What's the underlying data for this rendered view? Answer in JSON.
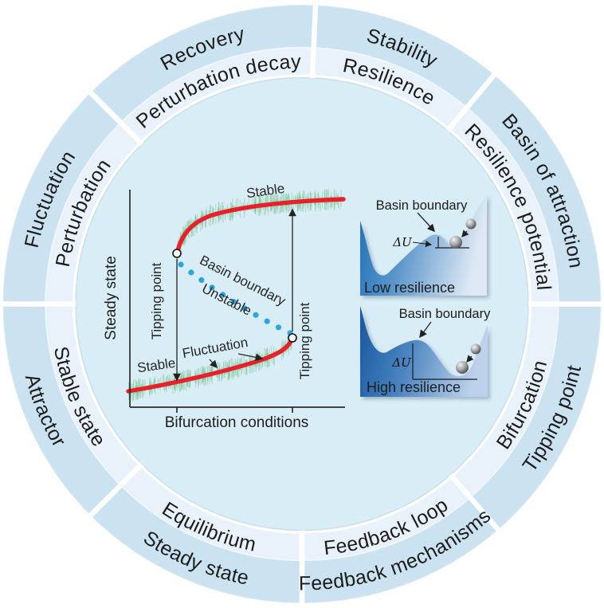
{
  "figure": {
    "type": "circular-glossary-diagram",
    "background": "#ffffff"
  },
  "ring": {
    "colors": {
      "outer_band": "#cbe2f1",
      "inner_band": "#e9f2fa",
      "center_disc": "#d9edf6",
      "divider": "#ffffff",
      "text": "#1c1c1c"
    },
    "boundaries_deg": [
      2.6,
      40,
      90,
      139,
      180,
      225,
      270,
      315
    ],
    "segments": [
      {
        "outer": "Stability",
        "inner": "Resilience",
        "mid": 21.3,
        "flip": false
      },
      {
        "outer": "Basin of attraction",
        "inner": "Resilience potential",
        "mid": 65,
        "flip": false
      },
      {
        "outer": "Tipping point",
        "inner": "Bifurcation",
        "mid": 114.5,
        "flip": true
      },
      {
        "outer": "Feedback mechanisms",
        "inner": "Feedback loop",
        "mid": 159.5,
        "flip": true
      },
      {
        "outer": "Steady state",
        "inner": "Equilibrium",
        "mid": 202.5,
        "flip": true
      },
      {
        "outer": "Attractor",
        "inner": "Stable state",
        "mid": 247.5,
        "flip": true
      },
      {
        "outer": "Fluctuation",
        "inner": "Perturbation",
        "mid": 292.5,
        "flip": false
      },
      {
        "outer": "Recovery",
        "inner": "Perturbation decay",
        "mid": 338.8,
        "flip": false
      }
    ]
  },
  "chart": {
    "y_axis_label": "Steady state",
    "x_axis_label": "Bifurcation conditions",
    "labels": {
      "stable_upper": "Stable",
      "stable_lower": "Stable",
      "basin_boundary": "Basin boundary",
      "unstable": "Unstable",
      "fluctuation": "Fluctuation",
      "tipping_point_left": "Tipping point",
      "tipping_point_right": "Tipping point"
    },
    "colors": {
      "stable_curve": "#e8202a",
      "unstable_dots": "#2ba7dd",
      "noise": "#76c48e",
      "axis": "#2a2a2a"
    }
  },
  "basins": [
    {
      "title": "Low resilience",
      "boundary_label": "Basin boundary",
      "delta_label": "ΔU",
      "gradient": [
        "#1e6fb6",
        "#5d97cb",
        "#dfe9f4"
      ],
      "title_color": "#fdfdfd"
    },
    {
      "title": "High resilience",
      "boundary_label": "Basin boundary",
      "delta_label": "ΔU",
      "gradient": [
        "#17579f",
        "#4a84c0",
        "#bdd1ea"
      ],
      "title_color": "#e6edf8"
    }
  ]
}
